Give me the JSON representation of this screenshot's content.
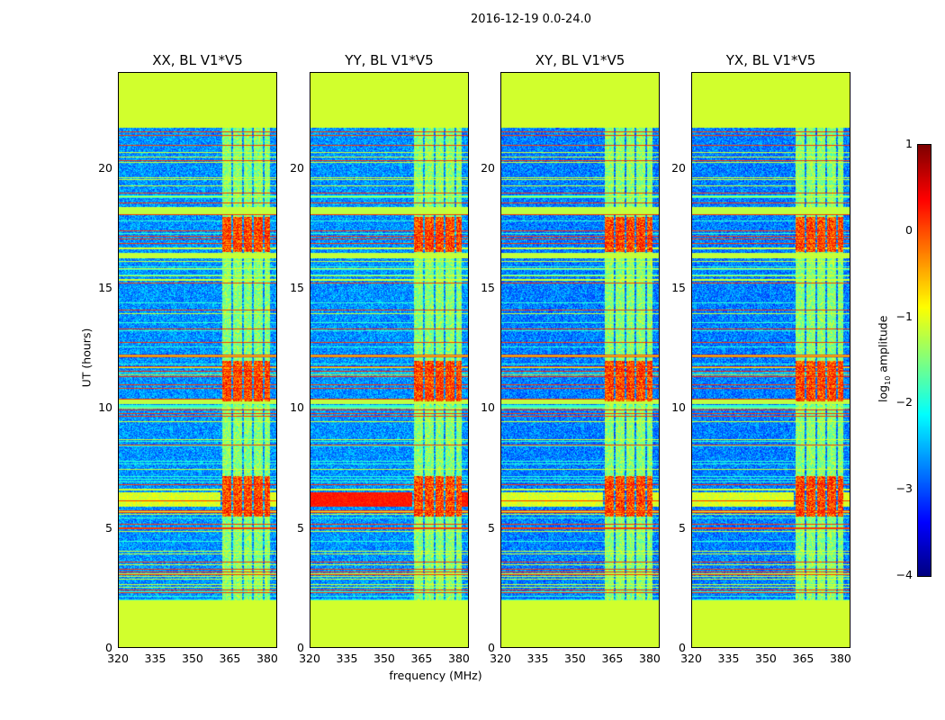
{
  "chart_data": {
    "type": "heatmap",
    "title": "2016-12-19 0.0-24.0",
    "xlabel": "frequency (MHz)",
    "ylabel": "UT (hours)",
    "xlim": [
      320,
      384
    ],
    "ylim": [
      0,
      24
    ],
    "xticks": [
      "320",
      "335",
      "350",
      "365",
      "380"
    ],
    "yticks": [
      "0",
      "5",
      "10",
      "15",
      "20"
    ],
    "panels": [
      {
        "title": "XX, BL V1*V5",
        "pol": "XX"
      },
      {
        "title": "YY, BL V1*V5",
        "pol": "YY"
      },
      {
        "title": "XY, BL V1*V5",
        "pol": "XY"
      },
      {
        "title": "YX, BL V1*V5",
        "pol": "YX"
      }
    ],
    "data_time_range_hours": [
      2.0,
      21.7
    ],
    "rfi_band_mhz": [
      361,
      381
    ],
    "strong_rfi_hours": [
      [
        5.5,
        7.2
      ],
      [
        10.3,
        12.0
      ],
      [
        16.5,
        18.0
      ]
    ],
    "colorbar": {
      "label": "log10 amplitude",
      "label_main": "log",
      "label_sub": "10",
      "label_rest": " amplitude",
      "range": [
        -4,
        1
      ],
      "ticks": [
        "1",
        "0",
        "−1",
        "−2",
        "−3",
        "−4"
      ],
      "colormap": "jet"
    }
  }
}
